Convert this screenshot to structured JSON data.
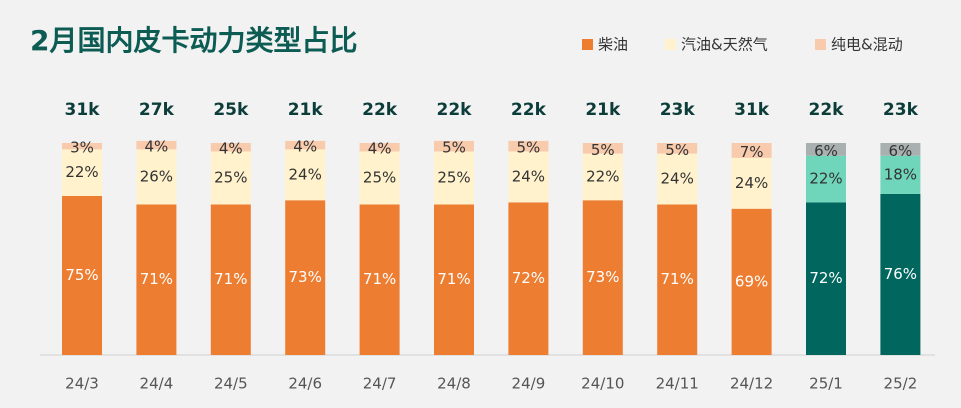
{
  "chart_data": {
    "type": "stacked_bar_100",
    "title": "2月国内皮卡动力类型占比",
    "categories": [
      "24/3",
      "24/4",
      "24/5",
      "24/6",
      "24/7",
      "24/8",
      "24/9",
      "24/10",
      "24/11",
      "24/12",
      "25/1",
      "25/2"
    ],
    "totals": [
      "31k",
      "27k",
      "25k",
      "21k",
      "22k",
      "22k",
      "22k",
      "21k",
      "23k",
      "31k",
      "22k",
      "23k"
    ],
    "ylim": [
      0,
      100
    ],
    "series": [
      {
        "name": "柴油",
        "color": "#ed7d31",
        "colors": [
          "#ed7d31",
          "#ed7d31",
          "#ed7d31",
          "#ed7d31",
          "#ed7d31",
          "#ed7d31",
          "#ed7d31",
          "#ed7d31",
          "#ed7d31",
          "#ed7d31",
          "#00665e",
          "#00665e"
        ],
        "values": [
          75,
          71,
          71,
          73,
          71,
          71,
          72,
          73,
          71,
          69,
          72,
          76
        ],
        "value_labels": [
          "75%",
          "71%",
          "71%",
          "73%",
          "71%",
          "71%",
          "72%",
          "73%",
          "71%",
          "69%",
          "72%",
          "76%"
        ]
      },
      {
        "name": "汽油&天然气",
        "color": "#fff2cc",
        "colors": [
          "#fff2cc",
          "#fff2cc",
          "#fff2cc",
          "#fff2cc",
          "#fff2cc",
          "#fff2cc",
          "#fff2cc",
          "#fff2cc",
          "#fff2cc",
          "#fff2cc",
          "#6fd6bc",
          "#6fd6bc"
        ],
        "values": [
          22,
          26,
          25,
          24,
          25,
          25,
          24,
          22,
          24,
          24,
          22,
          18
        ],
        "value_labels": [
          "22%",
          "26%",
          "25%",
          "24%",
          "25%",
          "25%",
          "24%",
          "22%",
          "24%",
          "24%",
          "22%",
          "18%"
        ]
      },
      {
        "name": "纯电&混动",
        "color": "#f8cbad",
        "colors": [
          "#f8cbad",
          "#f8cbad",
          "#f8cbad",
          "#f8cbad",
          "#f8cbad",
          "#f8cbad",
          "#f8cbad",
          "#f8cbad",
          "#f8cbad",
          "#f8cbad",
          "#a9b0b0",
          "#a9b0b0"
        ],
        "values": [
          3,
          4,
          4,
          4,
          4,
          5,
          5,
          5,
          5,
          7,
          6,
          6
        ],
        "value_labels": [
          "3%",
          "4%",
          "4%",
          "4%",
          "4%",
          "5%",
          "5%",
          "5%",
          "5%",
          "7%",
          "6%",
          "6%"
        ]
      }
    ]
  }
}
